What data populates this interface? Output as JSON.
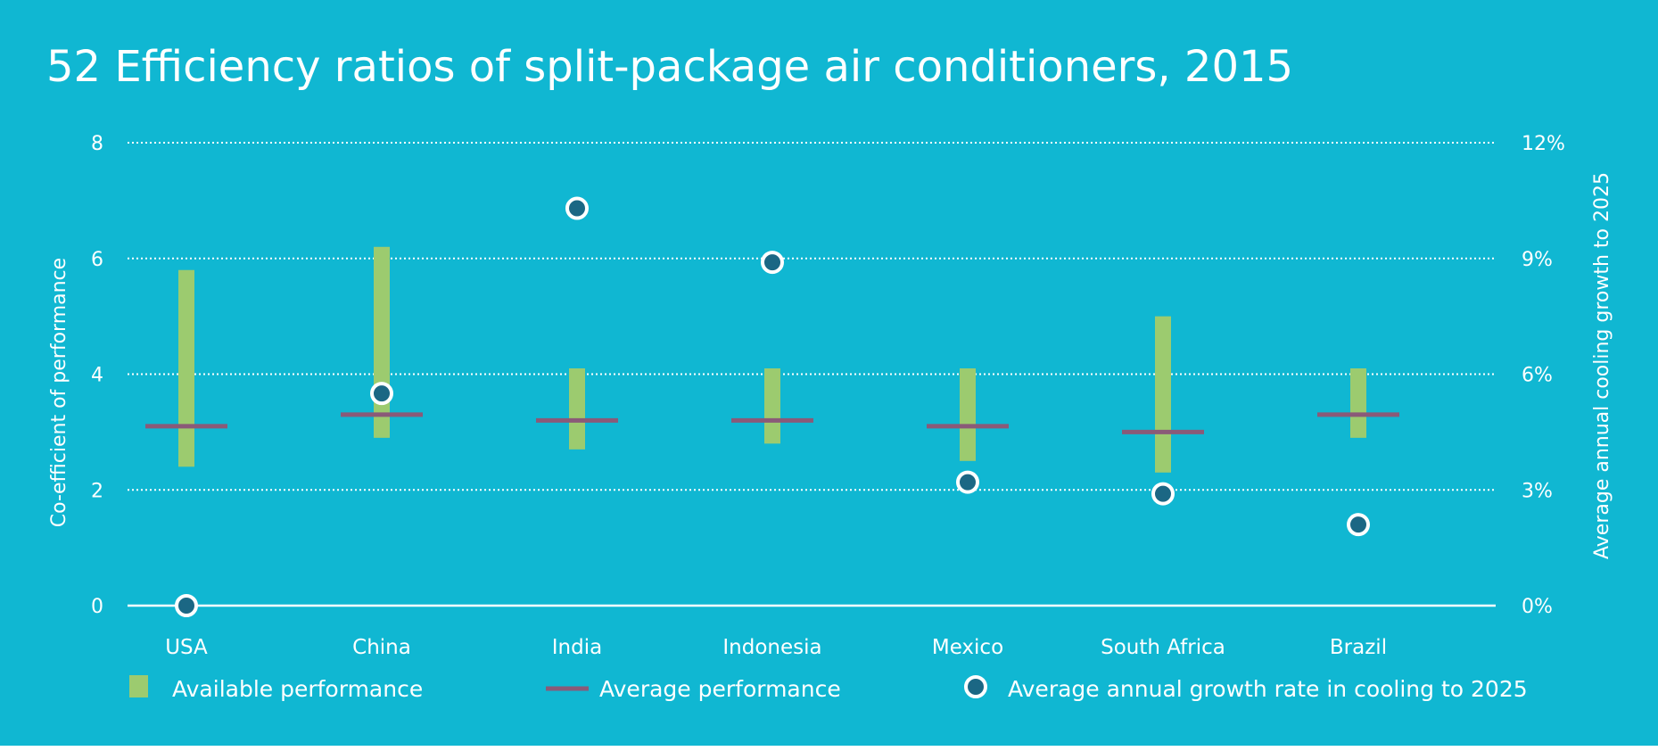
{
  "chart_data": {
    "type": "bar",
    "title": "52  Efficiency ratios of split-package air conditioners, 2015",
    "categories": [
      "USA",
      "China",
      "India",
      "Indonesia",
      "Mexico",
      "South Africa",
      "Brazil"
    ],
    "ylabel": "Co-efficient of performance",
    "y2label": "Average annual cooling growth to 2025",
    "ylim": [
      0,
      8
    ],
    "y2lim": [
      0,
      12
    ],
    "yticks": [
      "0",
      "2",
      "4",
      "6",
      "8"
    ],
    "y2ticks": [
      "0%",
      "3%",
      "6%",
      "9%",
      "12%"
    ],
    "grid": true,
    "series": [
      {
        "name": "Available performance",
        "kind": "range-bar",
        "low": [
          2.4,
          2.9,
          2.7,
          2.8,
          2.5,
          2.3,
          2.9
        ],
        "high": [
          5.8,
          6.2,
          4.1,
          4.1,
          4.1,
          5.0,
          4.1
        ]
      },
      {
        "name": "Average performance",
        "kind": "marker-line",
        "values": [
          3.1,
          3.3,
          3.2,
          3.2,
          3.1,
          3.0,
          3.3
        ]
      },
      {
        "name": "Average annual growth rate in cooling to 2025",
        "kind": "dot",
        "axis": "right",
        "values": [
          0.0,
          5.5,
          10.3,
          8.9,
          3.2,
          2.9,
          2.1
        ]
      }
    ],
    "legend_position": "bottom",
    "colors": {
      "background": "#10b7d2",
      "available": "#9ccb6f",
      "average": "#8a5a78",
      "dot_fill": "#1b6784",
      "dot_stroke": "#ffffff",
      "text": "#ffffff"
    }
  }
}
